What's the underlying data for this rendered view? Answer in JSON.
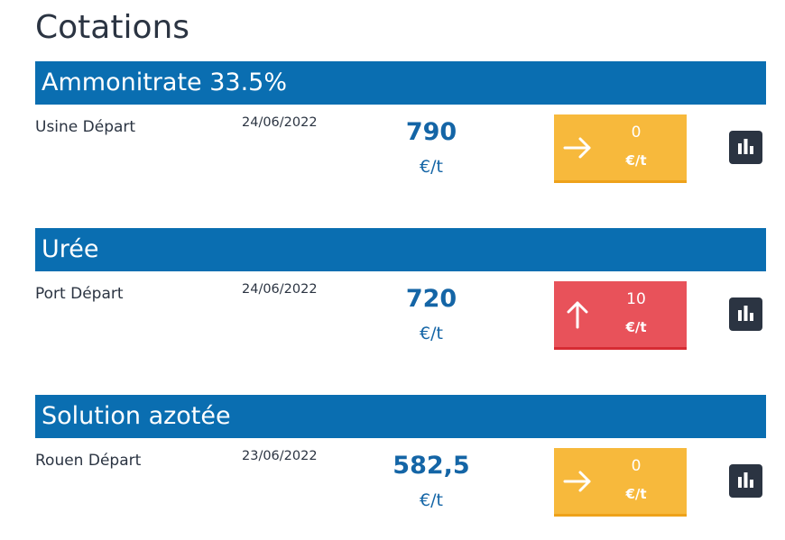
{
  "title": "Cotations",
  "sections": [
    {
      "name": "Ammonitrate 33.5%",
      "location": "Usine Départ",
      "date": "24/06/2022",
      "price": "790",
      "price_unit": "€/t",
      "change": "0",
      "change_unit": "€/t",
      "trend": "flat",
      "color": "#f7b93c",
      "border_color": "#eea21a"
    },
    {
      "name": "Urée",
      "location": "Port Départ",
      "date": "24/06/2022",
      "price": "720",
      "price_unit": "€/t",
      "change": "10",
      "change_unit": "€/t",
      "trend": "up",
      "color": "#e8525a",
      "border_color": "#d62b33"
    },
    {
      "name": "Solution azotée",
      "location": "Rouen Départ",
      "date": "23/06/2022",
      "price": "582,5",
      "price_unit": "€/t",
      "change": "0",
      "change_unit": "€/t",
      "trend": "flat",
      "color": "#f7b93c",
      "border_color": "#eea21a"
    }
  ]
}
